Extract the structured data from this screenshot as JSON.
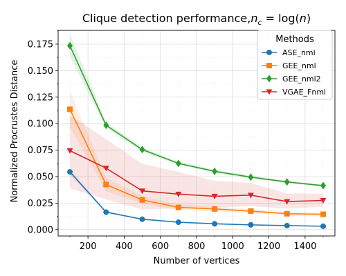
{
  "chart_data": {
    "type": "line",
    "title": "Clique detection performance,",
    "title_math": "n_c = log(n)",
    "title_math_parts": {
      "n": "n",
      "sub": "c",
      "eq": " = log(",
      "arg": "n",
      "close": ")"
    },
    "xlabel": "Number of vertices",
    "ylabel": "Normalized Procrustes Distance",
    "xlim": [
      35,
      1565
    ],
    "ylim": [
      -0.006,
      0.188
    ],
    "xticks": [
      200,
      400,
      600,
      800,
      1000,
      1200,
      1400
    ],
    "xtick_labels": [
      "200",
      "400",
      "600",
      "800",
      "1000",
      "1200",
      "1400"
    ],
    "yticks": [
      0.0,
      0.025,
      0.05,
      0.075,
      0.1,
      0.125,
      0.15,
      0.175
    ],
    "ytick_labels": [
      "0.000",
      "0.025",
      "0.050",
      "0.075",
      "0.100",
      "0.125",
      "0.150",
      "0.175"
    ],
    "grid": true,
    "legend_title": "Methods",
    "legend_position": "top-right",
    "x": [
      100,
      300,
      500,
      700,
      900,
      1100,
      1300,
      1500
    ],
    "series": [
      {
        "name": "ASE_nml",
        "color": "#1f77b4",
        "marker": "circle",
        "values": [
          0.0545,
          0.0165,
          0.0098,
          0.007,
          0.0055,
          0.0045,
          0.0038,
          0.0032
        ],
        "lower": [
          0.052,
          0.0155,
          0.0092,
          0.0066,
          0.0052,
          0.0042,
          0.0035,
          0.003
        ],
        "upper": [
          0.057,
          0.0175,
          0.0104,
          0.0074,
          0.0058,
          0.0048,
          0.0041,
          0.0034
        ]
      },
      {
        "name": "GEE_nml",
        "color": "#ff7f0e",
        "marker": "square",
        "values": [
          0.1135,
          0.0425,
          0.028,
          0.021,
          0.0195,
          0.0175,
          0.015,
          0.0145
        ],
        "lower": [
          0.097,
          0.036,
          0.0245,
          0.0185,
          0.017,
          0.0155,
          0.013,
          0.0128
        ],
        "upper": [
          0.131,
          0.049,
          0.032,
          0.0235,
          0.022,
          0.0195,
          0.017,
          0.0162
        ]
      },
      {
        "name": "GEE_nml2",
        "color": "#2ca02c",
        "marker": "diamond",
        "values": [
          0.1735,
          0.0985,
          0.0755,
          0.0625,
          0.055,
          0.0495,
          0.045,
          0.0415
        ],
        "lower": [
          0.163,
          0.0955,
          0.0735,
          0.061,
          0.0535,
          0.048,
          0.0438,
          0.0405
        ],
        "upper": [
          0.185,
          0.1015,
          0.0775,
          0.064,
          0.0565,
          0.051,
          0.0462,
          0.0425
        ]
      },
      {
        "name": "VGAE_Fnml",
        "color": "#d62728",
        "marker": "triangle-down",
        "values": [
          0.0745,
          0.058,
          0.0365,
          0.0335,
          0.0315,
          0.0325,
          0.0265,
          0.0275
        ],
        "lower": [
          0.039,
          0.0285,
          0.019,
          0.02,
          0.021,
          0.022,
          0.02,
          0.0215
        ],
        "upper": [
          0.108,
          0.0855,
          0.062,
          0.0545,
          0.046,
          0.044,
          0.034,
          0.034
        ]
      }
    ]
  }
}
